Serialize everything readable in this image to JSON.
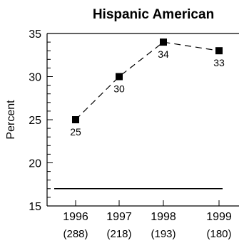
{
  "chart_data": {
    "type": "line",
    "title": "Hispanic American",
    "ylabel": "Percent",
    "xlabel": "",
    "ylim": [
      15,
      35
    ],
    "yticks": [
      15,
      20,
      25,
      30,
      35
    ],
    "categories": [
      "1996",
      "1997",
      "1998",
      "1999"
    ],
    "sample_sizes": [
      "(288)",
      "(218)",
      "(193)",
      "(180)"
    ],
    "series": [
      {
        "values": [
          25,
          30,
          34,
          33
        ],
        "data_labels": [
          "25",
          "30",
          "34",
          "33"
        ],
        "marker": "square",
        "line_style": "dashed"
      }
    ],
    "reference_line": {
      "value": 17
    },
    "grid": false,
    "colors": {
      "line": "#000000",
      "marker": "#000000",
      "axis": "#000000"
    }
  }
}
